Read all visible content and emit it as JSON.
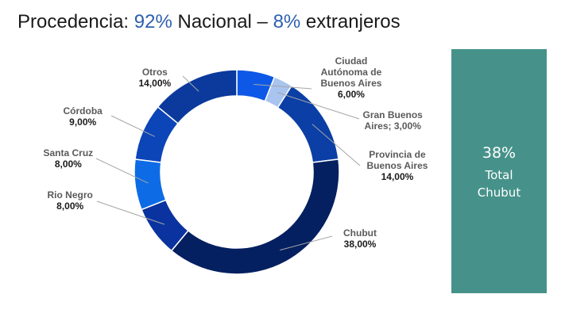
{
  "title": {
    "part1": "Procedencia: ",
    "pct_nacional": "92%",
    "part2": " Nacional – ",
    "pct_extranjeros": "8%",
    "part3": " extranjeros"
  },
  "chart_data": {
    "type": "donut",
    "slices": [
      {
        "name_lines": [
          "Ciudad",
          "Autónoma de",
          "Buenos Aires"
        ],
        "value": 6.0,
        "value_label": "6,00%",
        "color": "#0d58e6"
      },
      {
        "name_lines": [
          "Gran Buenos",
          "Aires; 3,00%"
        ],
        "value": 3.0,
        "value_label": "",
        "color": "#a8c4ef"
      },
      {
        "name_lines": [
          "Provincia de",
          "Buenos Aires"
        ],
        "value": 14.0,
        "value_label": "14,00%",
        "color": "#0b3fa5"
      },
      {
        "name_lines": [
          "Chubut"
        ],
        "value": 38.0,
        "value_label": "38,00%",
        "color": "#052060"
      },
      {
        "name_lines": [
          "Rio Negro"
        ],
        "value": 8.0,
        "value_label": "8,00%",
        "color": "#0a33a0"
      },
      {
        "name_lines": [
          "Santa Cruz"
        ],
        "value": 8.0,
        "value_label": "8,00%",
        "color": "#0d6be6"
      },
      {
        "name_lines": [
          "Córdoba"
        ],
        "value": 9.0,
        "value_label": "9,00%",
        "color": "#0c45b8"
      },
      {
        "name_lines": [
          "Otros"
        ],
        "value": 14.0,
        "value_label": "14,00%",
        "color": "#0b3a9c"
      }
    ]
  },
  "highlight": {
    "value": "38%",
    "line1": "Total",
    "line2": "Chubut",
    "color": "#46928a"
  }
}
